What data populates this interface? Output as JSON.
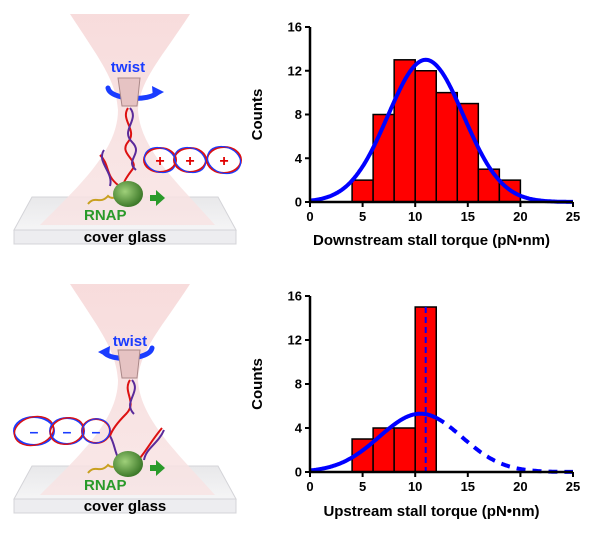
{
  "panels": [
    {
      "label_twist": "twist",
      "label_rnap": "RNAP",
      "label_glass": "cover glass",
      "supercoil_sign": "+"
    },
    {
      "label_twist": "twist",
      "label_rnap": "RNAP",
      "label_glass": "cover glass",
      "supercoil_sign": "–"
    }
  ],
  "colors": {
    "bar": "#ff0000",
    "fit": "#0000ff",
    "twist": "#1a3cff",
    "rnap": "#2a9a2a",
    "plus": "#e00000",
    "minus": "#1a3cff"
  },
  "chart_data": [
    {
      "type": "bar",
      "title": "",
      "xlabel": "Downstream stall torque (pN•nm)",
      "ylabel": "Counts",
      "xlim": [
        0,
        25
      ],
      "ylim": [
        0,
        16
      ],
      "xticks": [
        "0",
        "5",
        "10",
        "15",
        "20",
        "25"
      ],
      "yticks": [
        "0",
        "4",
        "8",
        "12",
        "16"
      ],
      "bin_edges": [
        4,
        6,
        8,
        10,
        12,
        14,
        16,
        18,
        20
      ],
      "values": [
        2,
        8,
        13,
        12,
        10,
        9,
        3,
        2
      ],
      "fit": {
        "type": "gaussian",
        "mean": 11,
        "sigma": 3.6,
        "peak": 13,
        "style": "solid",
        "range": [
          0,
          25
        ]
      }
    },
    {
      "type": "bar",
      "title": "",
      "xlabel": "Upstream stall torque (pN•nm)",
      "ylabel": "Counts",
      "xlim": [
        0,
        25
      ],
      "ylim": [
        0,
        16
      ],
      "xticks": [
        "0",
        "5",
        "10",
        "15",
        "20",
        "25"
      ],
      "yticks": [
        "0",
        "4",
        "8",
        "12",
        "16"
      ],
      "bin_edges": [
        4,
        6,
        8,
        10,
        12
      ],
      "values": [
        3,
        4,
        4,
        15
      ],
      "fit": {
        "type": "gaussian",
        "mean": 10.5,
        "sigma": 3.9,
        "peak": 5.3,
        "style": "solid-then-dashed",
        "dash_from": 12,
        "range": [
          0,
          25
        ]
      },
      "marker_line": {
        "x": 11,
        "style": "dashed"
      }
    }
  ]
}
